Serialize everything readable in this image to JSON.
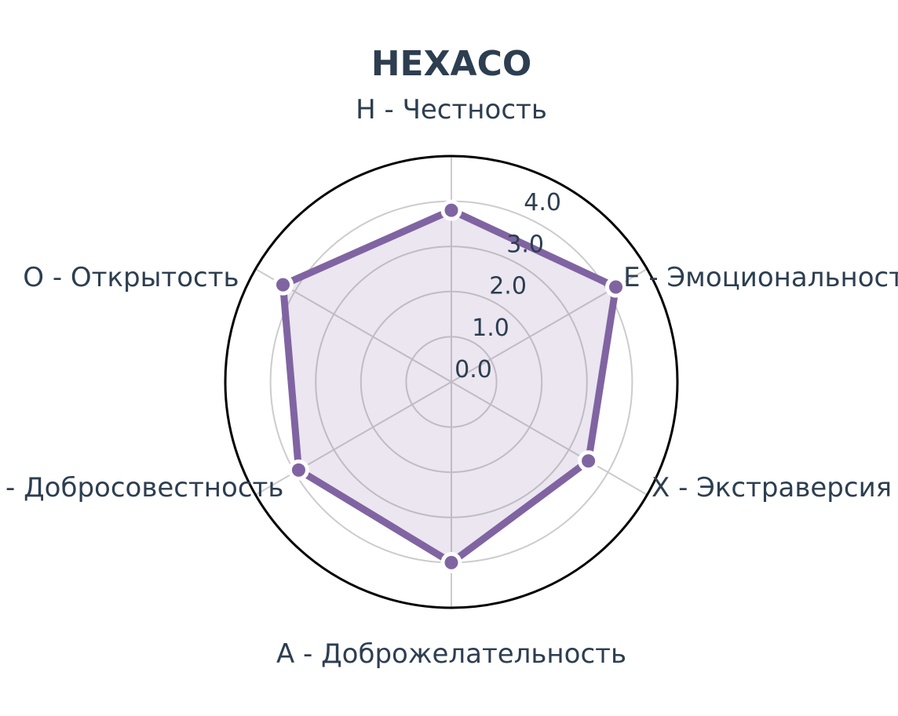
{
  "chart_data": {
    "type": "radar",
    "title": "HEXACO",
    "categories": [
      "H - Честность",
      "E - Эмоциональность",
      "X - Экстраверсия",
      "A - Доброжелательность",
      "C - Добросовестность",
      "O - Открытость"
    ],
    "series": [
      {
        "values": [
          3.8,
          4.2,
          3.5,
          4.0,
          3.9,
          4.3
        ]
      }
    ],
    "r_ticks": [
      "0.0",
      "1.0",
      "2.0",
      "3.0",
      "4.0"
    ],
    "r_range": [
      0,
      5
    ],
    "grid": true,
    "colors": {
      "line": "#8064a2",
      "fill": "#8064a2",
      "fill_opacity": 0.16,
      "grid": "#cccccc",
      "outer": "#000000",
      "text": "#2d3e50",
      "marker_edge": "#ffffff"
    }
  }
}
